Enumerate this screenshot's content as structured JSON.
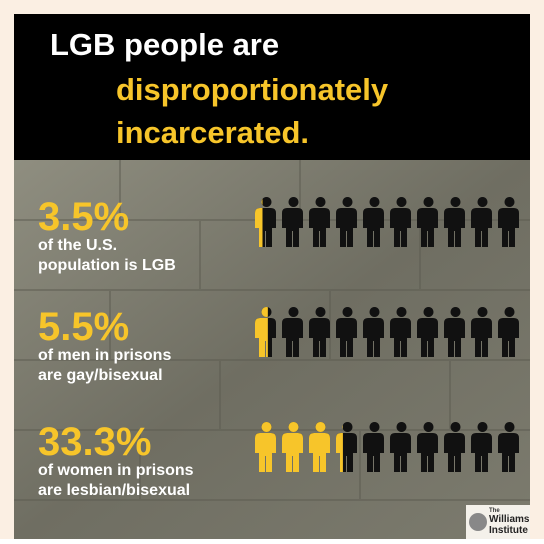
{
  "header": {
    "line1": "LGB people are",
    "line2": "disproportionately",
    "line3": "incarcerated."
  },
  "stats": [
    {
      "value": 3.5,
      "value_label": "3.5%",
      "caption1": "of the U.S.",
      "caption2": "population is LGB"
    },
    {
      "value": 5.5,
      "value_label": "5.5%",
      "caption1": "of men in prisons",
      "caption2": "are gay/bisexual"
    },
    {
      "value": 33.3,
      "value_label": "33.3%",
      "caption1": "of women in prisons",
      "caption2": "are lesbian/bisexual"
    }
  ],
  "icon_total": 100,
  "icon_count": 10,
  "logo": {
    "small": "The",
    "name1": "Williams",
    "name2": "Institute"
  }
}
